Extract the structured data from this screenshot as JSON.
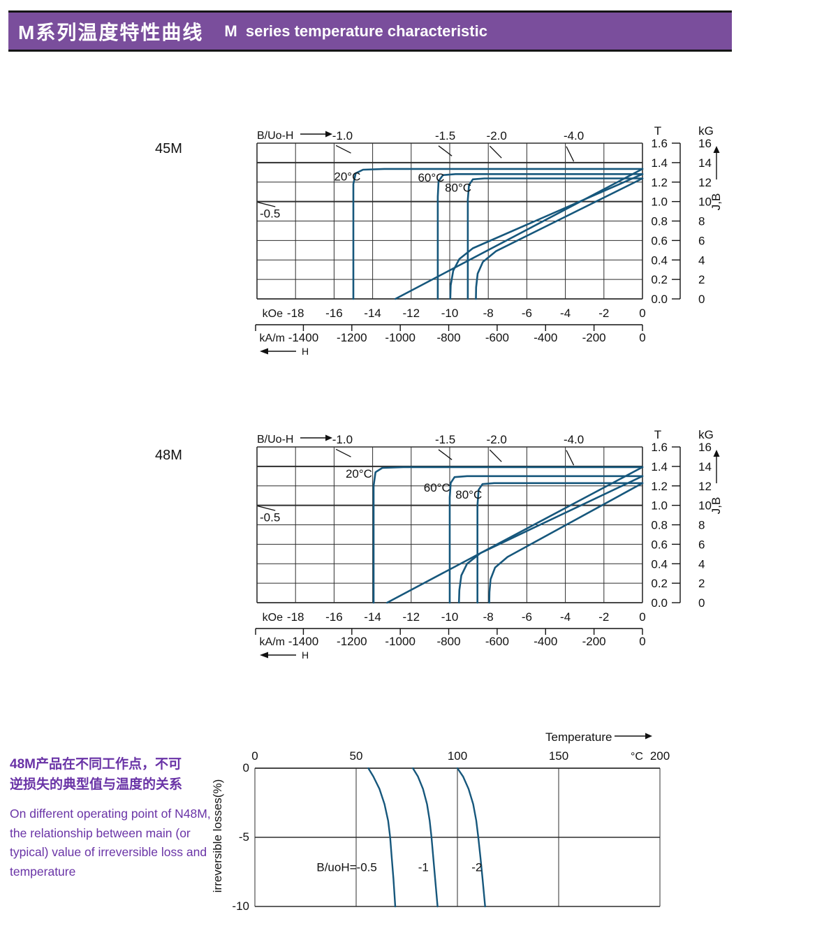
{
  "header": {
    "title_zh": "M系列温度特性曲线",
    "title_en": "M  series temperature characteristic"
  },
  "side_note": {
    "zh_lines": [
      "48M产品在不同工作点，不可",
      "逆损失的典型值与温度的关系"
    ],
    "en_lines": [
      "On different operating point of N48M,",
      "the relationship between main (or",
      "typical) value of irreversible loss and",
      "temperature"
    ]
  },
  "colors": {
    "header_bg": "#7a4e9c",
    "curve": "#16577c",
    "grid": "#2d2d2d",
    "ink": "#111111",
    "side_text": "#6933a6"
  },
  "chart_data": [
    {
      "type": "line",
      "id": "demag-45m",
      "grade": "45M",
      "top_axis_label": "B/Uo-H",
      "x_axis": {
        "primary_unit": "kOe",
        "secondary_unit": "kA/m",
        "range_koe": [
          -20,
          0
        ],
        "ticks_koe": [
          -18,
          -16,
          -14,
          -12,
          -10,
          -8,
          -6,
          -4,
          -2,
          0
        ],
        "ticks_kam": [
          -1400,
          -1200,
          -1000,
          -800,
          -600,
          -400,
          -200,
          0
        ],
        "arrow_label": "H"
      },
      "y_axis": {
        "unit_t": "T",
        "unit_kg": "kG",
        "range_t": [
          0,
          1.6
        ],
        "ticks_t": [
          "1.6",
          "1.4",
          "1.2",
          "1.0",
          "0.8",
          "0.6",
          "0.4",
          "0.2",
          "0.0"
        ],
        "ticks_kg": [
          16,
          14,
          12,
          10,
          8,
          6,
          4,
          2,
          0
        ],
        "arrow_label": "J,B"
      },
      "load_lines": [
        {
          "label": "-1.0",
          "value": -1.0
        },
        {
          "label": "-1.5",
          "value": -1.5
        },
        {
          "label": "-2.0",
          "value": -2.0
        },
        {
          "label": "-4.0",
          "value": -4.0
        },
        {
          "label": "-0.5",
          "value": -0.5,
          "side": "left"
        }
      ],
      "series": [
        {
          "name": "20°C",
          "label_at": [
            -16.0,
            1.215
          ],
          "j_curve": [
            [
              0,
              1.335
            ],
            [
              -13.4,
              1.335
            ],
            [
              -14.5,
              1.327
            ],
            [
              -14.88,
              1.29
            ],
            [
              -15.0,
              1.18
            ],
            [
              -15.0,
              0
            ]
          ],
          "b_curve": [
            [
              0,
              1.335
            ],
            [
              -12.82,
              0
            ]
          ]
        },
        {
          "name": "60°C",
          "label_at": [
            -11.65,
            1.205
          ],
          "j_curve": [
            [
              0,
              1.282
            ],
            [
              -9.7,
              1.282
            ],
            [
              -10.35,
              1.272
            ],
            [
              -10.58,
              1.21
            ],
            [
              -10.62,
              1.05
            ],
            [
              -10.62,
              0
            ]
          ],
          "b_curve": [
            [
              0,
              1.282
            ],
            [
              -8.8,
              0.52
            ],
            [
              -9.5,
              0.41
            ],
            [
              -9.82,
              0.29
            ],
            [
              -9.95,
              0.14
            ],
            [
              -9.97,
              0
            ]
          ]
        },
        {
          "name": "80°C",
          "label_at": [
            -10.25,
            1.1
          ],
          "j_curve": [
            [
              0,
              1.238
            ],
            [
              -8.2,
              1.238
            ],
            [
              -8.8,
              1.228
            ],
            [
              -9.0,
              1.17
            ],
            [
              -9.06,
              1.02
            ],
            [
              -9.06,
              0
            ]
          ],
          "b_curve": [
            [
              0,
              1.238
            ],
            [
              -7.6,
              0.49
            ],
            [
              -8.28,
              0.38
            ],
            [
              -8.55,
              0.26
            ],
            [
              -8.63,
              0.12
            ],
            [
              -8.64,
              0
            ]
          ]
        }
      ]
    },
    {
      "type": "line",
      "id": "demag-48m",
      "grade": "48M",
      "top_axis_label": "B/Uo-H",
      "x_axis": {
        "primary_unit": "kOe",
        "secondary_unit": "kA/m",
        "range_koe": [
          -20,
          0
        ],
        "ticks_koe": [
          -18,
          -16,
          -14,
          -12,
          -10,
          -8,
          -6,
          -4,
          -2,
          0
        ],
        "ticks_kam": [
          -1400,
          -1200,
          -1000,
          -800,
          -600,
          -400,
          -200,
          0
        ],
        "arrow_label": "H"
      },
      "y_axis": {
        "unit_t": "T",
        "unit_kg": "kG",
        "range_t": [
          0,
          1.6
        ],
        "ticks_t": [
          "1.6",
          "1.4",
          "1.2",
          "1.0",
          "0.8",
          "0.6",
          "0.4",
          "0.2",
          "0.0"
        ],
        "ticks_kg": [
          16,
          14,
          12,
          10,
          8,
          6,
          4,
          2,
          0
        ],
        "arrow_label": "J,B"
      },
      "load_lines": [
        {
          "label": "-1.0",
          "value": -1.0
        },
        {
          "label": "-1.5",
          "value": -1.5
        },
        {
          "label": "-2.0",
          "value": -2.0
        },
        {
          "label": "-4.0",
          "value": -4.0
        },
        {
          "label": "-0.5",
          "value": -0.5,
          "side": "left"
        }
      ],
      "series": [
        {
          "name": "20°C",
          "label_at": [
            -15.4,
            1.285
          ],
          "j_curve": [
            [
              0,
              1.393
            ],
            [
              -12.4,
              1.393
            ],
            [
              -13.5,
              1.385
            ],
            [
              -13.85,
              1.34
            ],
            [
              -13.95,
              1.2
            ],
            [
              -13.95,
              0
            ]
          ],
          "b_curve": [
            [
              0,
              1.393
            ],
            [
              -13.25,
              0
            ]
          ]
        },
        {
          "name": "60°C",
          "label_at": [
            -11.35,
            1.14
          ],
          "j_curve": [
            [
              0,
              1.3
            ],
            [
              -9.1,
              1.3
            ],
            [
              -9.75,
              1.29
            ],
            [
              -9.95,
              1.23
            ],
            [
              -10.0,
              1.08
            ],
            [
              -10.0,
              0
            ]
          ],
          "b_curve": [
            [
              0,
              1.3
            ],
            [
              -8.4,
              0.51
            ],
            [
              -9.1,
              0.4
            ],
            [
              -9.4,
              0.28
            ],
            [
              -9.5,
              0.13
            ],
            [
              -9.52,
              0
            ]
          ]
        },
        {
          "name": "80°C",
          "label_at": [
            -9.7,
            1.07
          ],
          "j_curve": [
            [
              0,
              1.228
            ],
            [
              -7.7,
              1.228
            ],
            [
              -8.3,
              1.218
            ],
            [
              -8.5,
              1.16
            ],
            [
              -8.56,
              1.0
            ],
            [
              -8.56,
              0
            ]
          ],
          "b_curve": [
            [
              0,
              1.228
            ],
            [
              -7.0,
              0.47
            ],
            [
              -7.65,
              0.36
            ],
            [
              -7.88,
              0.24
            ],
            [
              -7.94,
              0.11
            ],
            [
              -7.95,
              0
            ]
          ]
        }
      ]
    },
    {
      "type": "line",
      "id": "irreversible-loss",
      "x_axis": {
        "label": "Temperature",
        "unit": "°C",
        "range": [
          0,
          200
        ],
        "ticks": [
          0,
          50,
          100,
          150,
          200
        ]
      },
      "y_axis": {
        "label": "irreversible  losses(%)",
        "range": [
          -10,
          0
        ],
        "ticks": [
          0,
          -5,
          -10
        ]
      },
      "series": [
        {
          "name": "B/uoH=-0.5",
          "label_at": [
            60.3,
            -7.45
          ],
          "label_anchor": "end",
          "points": [
            [
              56,
              0
            ],
            [
              58.5,
              -0.6
            ],
            [
              61.5,
              -1.5
            ],
            [
              64,
              -2.6
            ],
            [
              65.8,
              -3.8
            ],
            [
              66.8,
              -5
            ],
            [
              67.6,
              -6.5
            ],
            [
              68.4,
              -8
            ],
            [
              69.3,
              -10
            ]
          ]
        },
        {
          "name": "-1",
          "label_at": [
            83.2,
            -7.45
          ],
          "label_anchor": "middle",
          "points": [
            [
              78,
              0
            ],
            [
              80.5,
              -0.6
            ],
            [
              83,
              -1.5
            ],
            [
              85,
              -2.6
            ],
            [
              86.3,
              -3.8
            ],
            [
              87.2,
              -5
            ],
            [
              88.1,
              -6.5
            ],
            [
              89,
              -8
            ],
            [
              90.2,
              -10
            ]
          ]
        },
        {
          "name": "-2",
          "label_at": [
            109.6,
            -7.45
          ],
          "label_anchor": "middle",
          "points": [
            [
              100,
              0
            ],
            [
              102.8,
              -0.6
            ],
            [
              105.5,
              -1.5
            ],
            [
              107.8,
              -2.6
            ],
            [
              109.3,
              -3.8
            ],
            [
              110.3,
              -5
            ],
            [
              111.4,
              -6.5
            ],
            [
              112.4,
              -8
            ],
            [
              113.7,
              -10
            ]
          ]
        }
      ]
    }
  ]
}
